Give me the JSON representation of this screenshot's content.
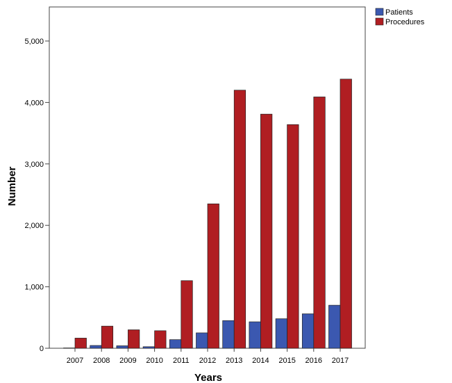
{
  "chart_data": {
    "type": "bar",
    "categories": [
      "2007",
      "2008",
      "2009",
      "2010",
      "2011",
      "2012",
      "2013",
      "2014",
      "2015",
      "2016",
      "2017"
    ],
    "series": [
      {
        "name": "Patients",
        "color": "#3b58b0",
        "values": [
          5,
          45,
          40,
          25,
          140,
          250,
          450,
          430,
          480,
          560,
          700
        ]
      },
      {
        "name": "Procedures",
        "color": "#b01e22",
        "values": [
          165,
          360,
          300,
          285,
          1100,
          2350,
          4200,
          3810,
          3640,
          4090,
          4380
        ]
      }
    ],
    "xlabel": "Years",
    "ylabel": "Number",
    "ylim": [
      0,
      5000
    ],
    "yticks": [
      0,
      1000,
      2000,
      3000,
      4000,
      5000
    ],
    "ytick_labels": [
      "0",
      "1,000",
      "2,000",
      "3,000",
      "4,000",
      "5,000"
    ],
    "grid": false,
    "legend_position": "top-right"
  }
}
